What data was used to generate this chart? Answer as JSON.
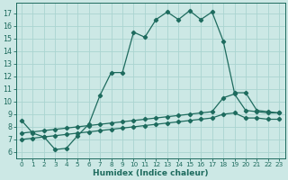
{
  "xlabel": "Humidex (Indice chaleur)",
  "xlim": [
    -0.5,
    23.5
  ],
  "ylim": [
    5.5,
    17.8
  ],
  "yticks": [
    6,
    7,
    8,
    9,
    10,
    11,
    12,
    13,
    14,
    15,
    16,
    17
  ],
  "xticks": [
    0,
    1,
    2,
    3,
    4,
    5,
    6,
    7,
    8,
    9,
    10,
    11,
    12,
    13,
    14,
    15,
    16,
    17,
    18,
    19,
    20,
    21,
    22,
    23
  ],
  "bg_color": "#cce8e5",
  "grid_color": "#aad4d0",
  "line_color": "#1e6b5e",
  "line1_x": [
    0,
    1,
    2,
    3,
    4,
    5,
    6,
    7,
    8,
    9,
    10,
    11,
    12,
    13,
    14,
    15,
    16,
    17,
    18,
    19,
    20,
    21,
    22,
    23
  ],
  "line1_y": [
    8.5,
    7.5,
    7.2,
    6.2,
    6.3,
    7.3,
    8.2,
    10.5,
    12.3,
    12.3,
    15.5,
    15.1,
    16.5,
    17.1,
    16.5,
    17.2,
    16.5,
    17.1,
    14.8,
    10.7,
    10.7,
    9.3,
    9.2,
    9.1
  ],
  "line2_x": [
    0,
    1,
    2,
    3,
    4,
    5,
    6,
    7,
    8,
    9,
    10,
    11,
    12,
    13,
    14,
    15,
    16,
    17,
    18,
    19,
    20,
    21,
    22,
    23
  ],
  "line2_y": [
    7.5,
    7.6,
    7.7,
    7.8,
    7.9,
    8.0,
    8.1,
    8.2,
    8.3,
    8.4,
    8.5,
    8.6,
    8.7,
    8.8,
    8.9,
    9.0,
    9.1,
    9.2,
    10.3,
    10.6,
    9.3,
    9.2,
    9.1,
    9.1
  ],
  "line3_x": [
    0,
    1,
    2,
    3,
    4,
    5,
    6,
    7,
    8,
    9,
    10,
    11,
    12,
    13,
    14,
    15,
    16,
    17,
    18,
    19,
    20,
    21,
    22,
    23
  ],
  "line3_y": [
    7.0,
    7.1,
    7.2,
    7.3,
    7.4,
    7.5,
    7.6,
    7.7,
    7.8,
    7.9,
    8.0,
    8.1,
    8.2,
    8.3,
    8.4,
    8.5,
    8.6,
    8.7,
    9.0,
    9.1,
    8.7,
    8.7,
    8.6,
    8.6
  ]
}
